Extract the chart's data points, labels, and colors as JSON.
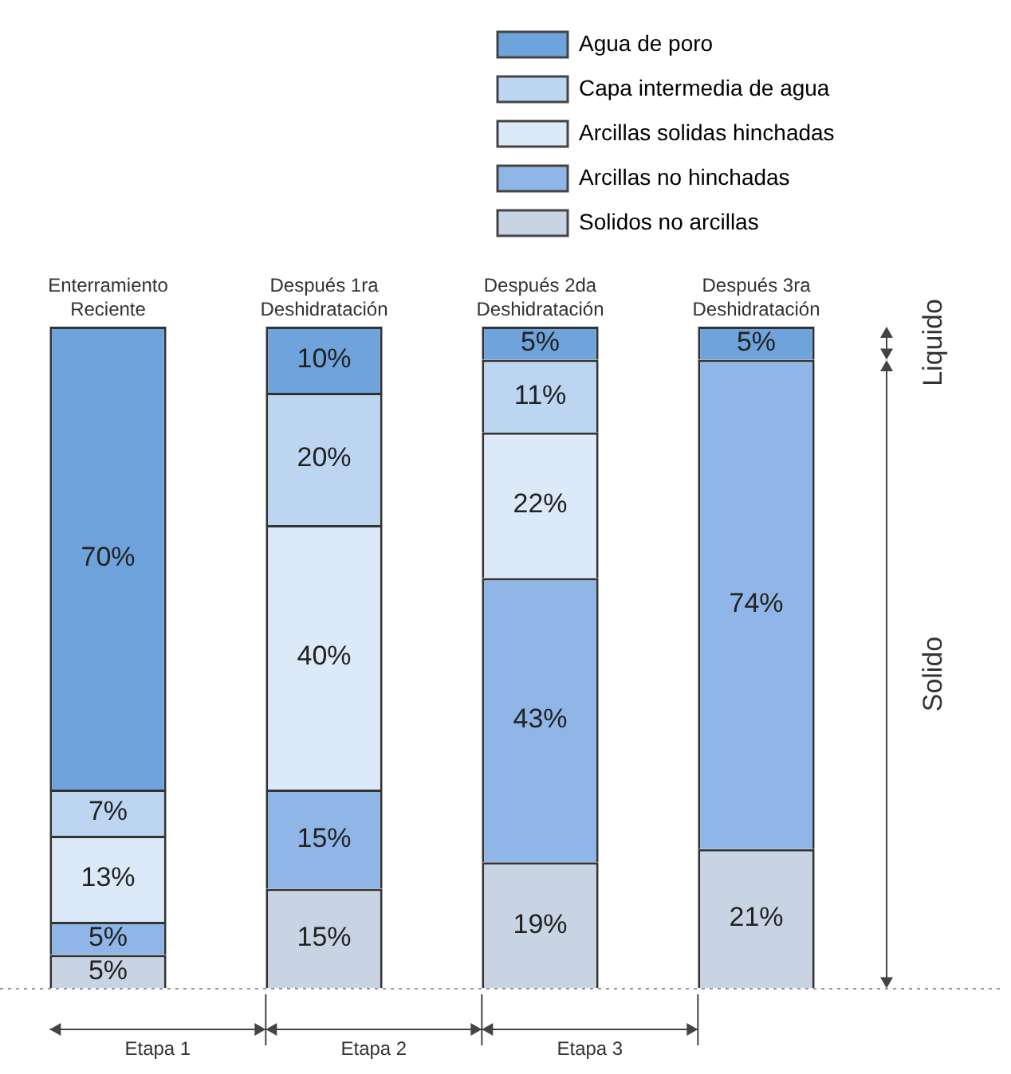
{
  "chart_data": {
    "type": "bar",
    "stacked": true,
    "legend": "top right",
    "grid": false,
    "tick_labels": false,
    "categories": [
      "Enterramiento Reciente",
      "Después 1ra Deshidratación",
      "Después 2da Deshidratación",
      "Después 3ra Deshidratación"
    ],
    "series": [
      {
        "name": "Solidos no arcillas",
        "color": "#c8d4e3",
        "values": [
          5,
          15,
          19,
          21
        ],
        "value_labels": [
          "5%",
          "15%",
          "19%",
          "21%"
        ]
      },
      {
        "name": "Arcillas no hinchadas",
        "color": "#8fb6e6",
        "values": [
          5,
          15,
          43,
          74
        ],
        "value_labels": [
          "5%",
          "15%",
          "43%",
          "74%"
        ]
      },
      {
        "name": "Arcillas solidas hinchadas",
        "color": "#dce9f8",
        "values": [
          13,
          40,
          22,
          null
        ],
        "value_labels": [
          "13%",
          "40%",
          "22%",
          null
        ]
      },
      {
        "name": "Capa intermedia de agua",
        "color": "#bcd5f0",
        "values": [
          7,
          20,
          11,
          null
        ],
        "value_labels": [
          "7%",
          "20%",
          "11%",
          null
        ]
      },
      {
        "name": "Agua de poro",
        "color": "#6fa3dc",
        "values": [
          70,
          10,
          5,
          5
        ],
        "value_labels": [
          "70%",
          "10%",
          "5%",
          "5%"
        ]
      }
    ],
    "annotations": [
      "Etapa 1",
      "Etapa 2",
      "Etapa 3",
      "Liquido",
      "Solido"
    ]
  }
}
